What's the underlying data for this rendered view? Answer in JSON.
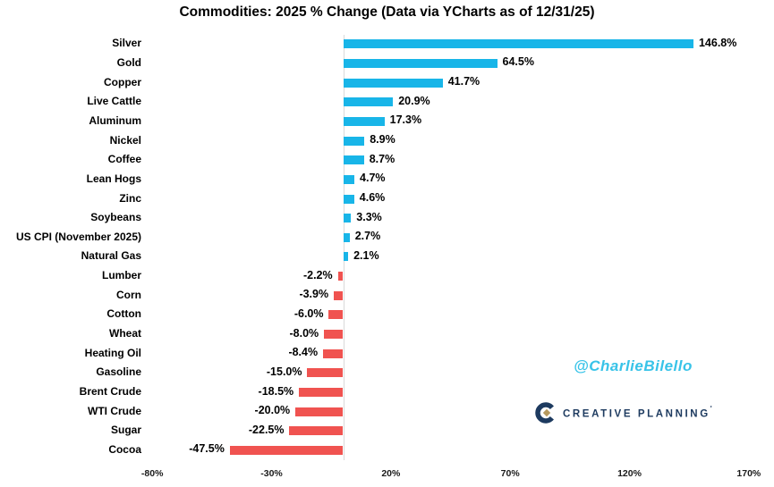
{
  "title": "Commodities: 2025 % Change (Data via YCharts as of 12/31/25)",
  "watermark": {
    "handle": "@CharlieBilello",
    "handle_color": "#38c3e8",
    "logo_text": "CREATIVE PLANNING",
    "logo_tm": "'",
    "logo_navy": "#1d3a5f",
    "logo_gold": "#b6995e"
  },
  "chart_data": {
    "type": "bar",
    "orientation": "horizontal",
    "title": "Commodities: 2025 % Change (Data via YCharts as of 12/31/25)",
    "categories": [
      "Silver",
      "Gold",
      "Copper",
      "Live Cattle",
      "Aluminum",
      "Nickel",
      "Coffee",
      "Lean Hogs",
      "Zinc",
      "Soybeans",
      "US CPI (November 2025)",
      "Natural Gas",
      "Lumber",
      "Corn",
      "Cotton",
      "Wheat",
      "Heating Oil",
      "Gasoline",
      "Brent Crude",
      "WTI Crude",
      "Sugar",
      "Cocoa"
    ],
    "values": [
      146.8,
      64.5,
      41.7,
      20.9,
      17.3,
      8.9,
      8.7,
      4.7,
      4.6,
      3.3,
      2.7,
      2.1,
      -2.2,
      -3.9,
      -6.0,
      -8.0,
      -8.4,
      -15.0,
      -18.5,
      -20.0,
      -22.5,
      -47.5
    ],
    "value_labels": [
      "146.8%",
      "64.5%",
      "41.7%",
      "20.9%",
      "17.3%",
      "8.9%",
      "8.7%",
      "4.7%",
      "4.6%",
      "3.3%",
      "2.7%",
      "2.1%",
      "-2.2%",
      "-3.9%",
      "-6.0%",
      "-8.0%",
      "-8.4%",
      "-15.0%",
      "-18.5%",
      "-20.0%",
      "-22.5%",
      "-47.5%"
    ],
    "xlabel": "",
    "ylabel": "",
    "xlim": [
      -80,
      170
    ],
    "x_ticks": [
      -80,
      -30,
      20,
      70,
      120,
      170
    ],
    "x_tick_labels": [
      "-80%",
      "-30%",
      "20%",
      "70%",
      "120%",
      "170%"
    ],
    "grid": false,
    "legend": "none",
    "positive_color": "#18b5e8",
    "negative_color": "#f05350",
    "zero_line_color": "#d9d9d9"
  }
}
